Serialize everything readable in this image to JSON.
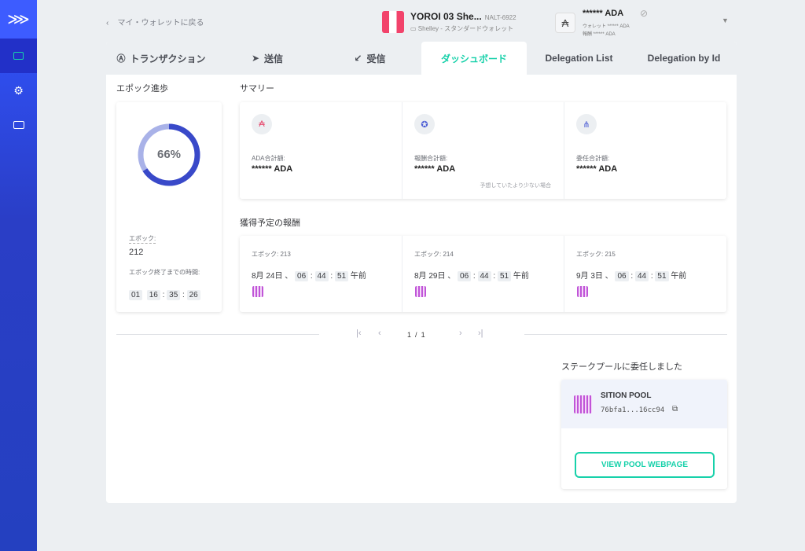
{
  "header": {
    "back": "マイ・ウォレットに戻る",
    "wallet_name": "YOROI 03 She...",
    "plate": "NALT-6922",
    "wallet_type": "Shelley - スタンダードウォレット",
    "balance": "****** ADA",
    "wallet_balance": "ウォレット ****** ADA",
    "reward_balance": "報酬 ****** ADA"
  },
  "tabs": [
    {
      "label": "トランザクション"
    },
    {
      "label": "送信"
    },
    {
      "label": "受信"
    },
    {
      "label": "ダッシュボード",
      "active": true
    },
    {
      "label": "Delegation List"
    },
    {
      "label": "Delegation by Id"
    }
  ],
  "epoch": {
    "title": "エポック進歩",
    "percent_label": "66%",
    "percent": 66,
    "epoch_label": "エポック:",
    "epoch_value": "212",
    "time_label": "エポック終了までの時間:",
    "time": [
      "01",
      "16",
      "35",
      "26"
    ]
  },
  "summary": {
    "title": "サマリー",
    "items": [
      {
        "label": "ADA合計額:",
        "value": "****** ADA",
        "icon": "ada-cycle-icon"
      },
      {
        "label": "報酬合計額:",
        "value": "****** ADA",
        "note": "予想していたより少ない場合",
        "icon": "reward-badge-icon"
      },
      {
        "label": "委任合計額:",
        "value": "****** ADA",
        "icon": "delegation-icon"
      }
    ]
  },
  "rewards": {
    "title": "獲得予定の報酬",
    "items": [
      {
        "epoch": "エポック: 213",
        "date": "8月 24日 、",
        "h": "06",
        "m": "44",
        "s": "51",
        "ampm": "午前"
      },
      {
        "epoch": "エポック: 214",
        "date": "8月 29日 、",
        "h": "06",
        "m": "44",
        "s": "51",
        "ampm": "午前"
      },
      {
        "epoch": "エポック: 215",
        "date": "9月 3日 、",
        "h": "06",
        "m": "44",
        "s": "51",
        "ampm": "午前"
      }
    ]
  },
  "pagination": {
    "current": "1",
    "sep": "/",
    "total": "1"
  },
  "pool": {
    "title": "ステークプールに委任しました",
    "name": "SITION POOL",
    "id": "76bfa1...16cc94",
    "button": "VIEW POOL WEBPAGE"
  },
  "colors": {
    "accent": "#17d1aa",
    "sidebar": "#3154ff",
    "progress": "#3949c9"
  }
}
